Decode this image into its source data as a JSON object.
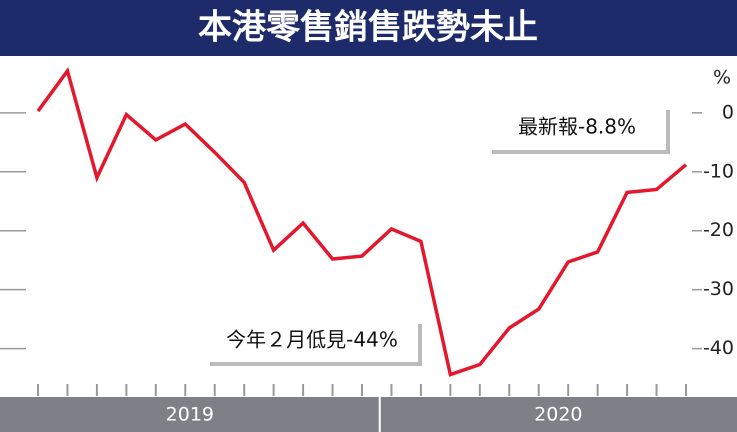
{
  "chart_data": {
    "type": "line",
    "title": "本港零售銷售跌勢未止",
    "y_unit": "%",
    "categories": [
      null,
      null,
      null,
      null,
      null,
      null,
      null,
      null,
      null,
      null,
      null,
      null,
      null,
      null,
      null,
      null,
      null,
      null,
      null,
      null,
      null,
      null,
      null
    ],
    "x_groups": [
      {
        "label": "2019",
        "count": 12
      },
      {
        "label": "2020",
        "count": 11
      }
    ],
    "series": [
      {
        "color": "#e3182d",
        "values": [
          0.3,
          7.1,
          -11,
          -0.3,
          -4.6,
          -1.9,
          -6.7,
          -11.8,
          -23.3,
          -18.7,
          -24.8,
          -24.3,
          -19.7,
          -21.8,
          -44.4,
          -42.7,
          -36.5,
          -33.3,
          -25.3,
          -23.6,
          -13.5,
          -13.0,
          -8.8
        ]
      }
    ],
    "ylim": [
      -46,
      9.3
    ],
    "yticks": [
      0,
      -10,
      -20,
      -30,
      -40
    ],
    "annotations": [
      "最新報-8.8%",
      "今年２月低見-44%"
    ]
  }
}
